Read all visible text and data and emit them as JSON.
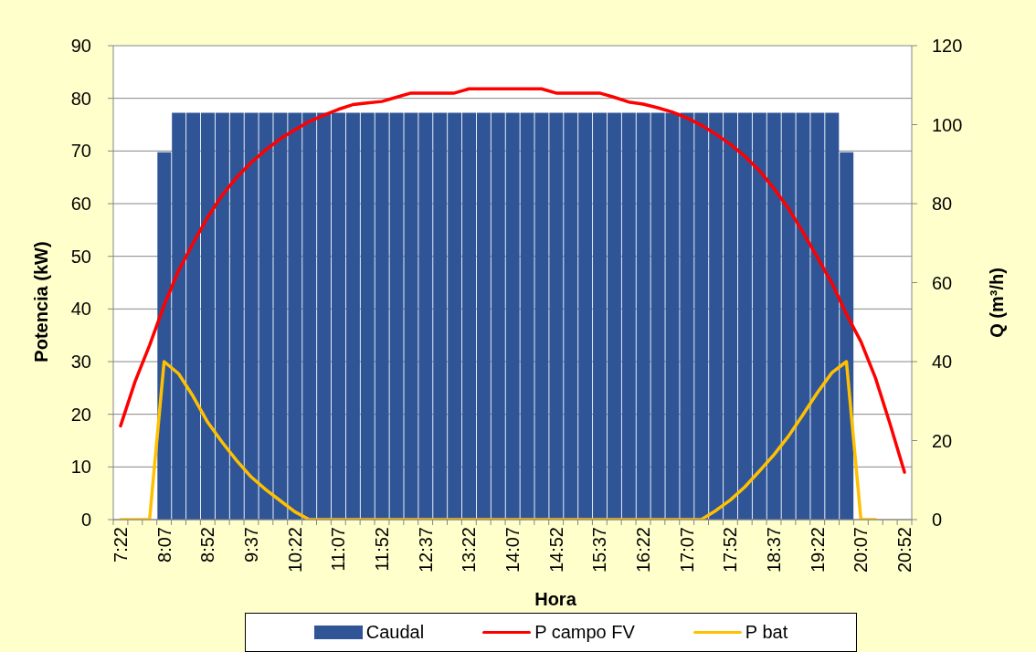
{
  "chart_data": {
    "type": "bar",
    "xlabel": "Hora",
    "ylabel": "Potencia (kW)",
    "y2label": "Q (m³/h)",
    "categories": [
      "7:22",
      null,
      null,
      "8:07",
      null,
      null,
      "8:52",
      null,
      null,
      "9:37",
      null,
      null,
      "10:22",
      null,
      null,
      "11:07",
      null,
      null,
      "11:52",
      null,
      null,
      "12:37",
      null,
      null,
      "13:22",
      null,
      null,
      "14:07",
      null,
      null,
      "14:52",
      null,
      null,
      "15:37",
      null,
      null,
      "16:22",
      null,
      null,
      "17:07",
      null,
      null,
      "17:52",
      null,
      null,
      "18:37",
      null,
      null,
      "19:22",
      null,
      null,
      "20:07",
      null,
      null,
      "20:52"
    ],
    "ylim": [
      0,
      90
    ],
    "yticks": [
      0,
      10,
      20,
      30,
      40,
      50,
      60,
      70,
      80,
      90
    ],
    "y2lim": [
      0,
      120
    ],
    "y2ticks": [
      0,
      20,
      40,
      60,
      80,
      100,
      120
    ],
    "grid": "y",
    "legend": "bottom",
    "series": [
      {
        "name": "Caudal",
        "axis": "y2",
        "color": "#2f5597",
        "values": [
          null,
          null,
          null,
          93,
          103,
          103,
          103,
          103,
          103,
          103,
          103,
          103,
          103,
          103,
          103,
          103,
          103,
          103,
          103,
          103,
          103,
          103,
          103,
          103,
          103,
          103,
          103,
          103,
          103,
          103,
          103,
          103,
          103,
          103,
          103,
          103,
          103,
          103,
          103,
          103,
          103,
          103,
          103,
          103,
          103,
          103,
          103,
          103,
          103,
          103,
          93,
          null,
          null,
          null,
          null
        ]
      },
      {
        "name": "P campo FV",
        "type": "line",
        "color": "#ff0000",
        "values": [
          17.8,
          26.2,
          33.1,
          40.7,
          47.3,
          52.5,
          57.4,
          61.6,
          65.0,
          67.8,
          70.2,
          72.3,
          74.0,
          75.6,
          76.8,
          77.9,
          78.8,
          79.1,
          79.4,
          80.2,
          81.0,
          81.0,
          81.0,
          81.0,
          81.8,
          81.8,
          81.8,
          81.8,
          81.8,
          81.8,
          81.0,
          81.0,
          81.0,
          81.0,
          80.2,
          79.3,
          78.9,
          78.2,
          77.4,
          76.3,
          74.9,
          73.2,
          71.3,
          69.0,
          66.3,
          62.9,
          59.1,
          54.6,
          49.8,
          44.9,
          39.0,
          33.8,
          26.9,
          18.2,
          9.0
        ]
      },
      {
        "name": "P bat",
        "type": "line",
        "color": "#ffc000",
        "values": [
          0,
          0,
          0,
          30,
          27.7,
          23.4,
          18.5,
          14.7,
          11.2,
          8.1,
          5.7,
          3.6,
          1.5,
          0,
          0,
          0,
          0,
          0,
          0,
          0,
          0,
          0,
          0,
          0,
          0,
          0,
          0,
          0,
          0,
          0,
          0,
          0,
          0,
          0,
          0,
          0,
          0,
          0,
          0,
          0,
          0,
          1.7,
          3.7,
          6.2,
          9.2,
          12.3,
          15.8,
          19.9,
          24.1,
          27.9,
          30,
          0,
          0,
          null,
          null
        ]
      }
    ]
  }
}
